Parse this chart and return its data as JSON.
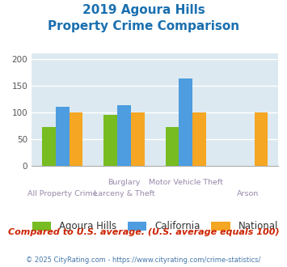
{
  "title_line1": "2019 Agoura Hills",
  "title_line2": "Property Crime Comparison",
  "title_color": "#1a6faf",
  "top_labels": [
    "",
    "Burglary",
    "Motor Vehicle Theft",
    ""
  ],
  "bot_labels": [
    "All Property Crime",
    "Larceny & Theft",
    "",
    "Arson"
  ],
  "series": {
    "Agoura Hills": {
      "color": "#77bc21",
      "values": [
        72,
        95,
        72,
        null
      ]
    },
    "California": {
      "color": "#4d9de0",
      "values": [
        110,
        113,
        163,
        null
      ]
    },
    "National": {
      "color": "#f5a623",
      "values": [
        100,
        100,
        100,
        100
      ]
    }
  },
  "ylim": [
    0,
    210
  ],
  "yticks": [
    0,
    50,
    100,
    150,
    200
  ],
  "plot_bg": "#dce9f0",
  "subtitle": "Compared to U.S. average. (U.S. average equals 100)",
  "subtitle_color": "#cc2200",
  "footer": "© 2025 CityRating.com - https://www.cityrating.com/crime-statistics/",
  "footer_color": "#4477aa",
  "bar_width": 0.22
}
